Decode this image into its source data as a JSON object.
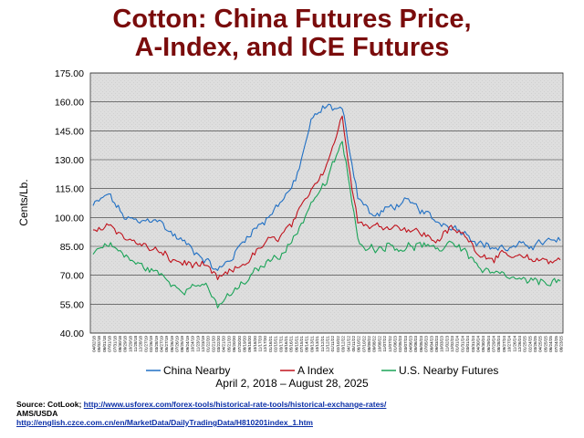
{
  "chart_data": {
    "type": "line",
    "title_lines": [
      "Cotton:  China Futures Price,",
      "A-Index, and ICE Futures"
    ],
    "ylabel": "Cents/Lb.",
    "xlabel": "",
    "subtitle": "April 2, 2018 – August 28, 2025",
    "ylim": [
      40,
      175
    ],
    "yticks": [
      "175.00",
      "160.00",
      "145.00",
      "130.00",
      "115.00",
      "100.00",
      "85.00",
      "70.00",
      "55.00",
      "40.00"
    ],
    "ytick_values": [
      175,
      160,
      145,
      130,
      115,
      100,
      85,
      70,
      55,
      40
    ],
    "xticks": [
      "04/02/18",
      "05/02/18",
      "06/01/18",
      "07/01/18",
      "07/31/18",
      "08/30/18",
      "09/29/18",
      "10/29/18",
      "11/28/18",
      "12/28/18",
      "01/27/19",
      "02/26/19",
      "03/28/19",
      "04/27/19",
      "05/27/19",
      "06/26/19",
      "07/26/19",
      "08/25/19",
      "09/24/19",
      "10/24/19",
      "11/23/19",
      "12/23/19",
      "01/22/20",
      "02/21/20",
      "03/22/20",
      "04/21/20",
      "05/21/20",
      "06/20/20",
      "07/20/20",
      "08/19/20",
      "09/18/20",
      "10/18/20",
      "11/17/20",
      "12/17/20",
      "01/16/21",
      "02/15/21",
      "03/17/21",
      "04/16/21",
      "05/16/21",
      "06/15/21",
      "07/15/21",
      "08/14/21",
      "09/13/21",
      "10/13/21",
      "11/12/21",
      "12/12/21",
      "01/11/22",
      "02/10/22",
      "03/12/22",
      "04/11/22",
      "05/11/22",
      "06/10/22",
      "07/10/22",
      "08/09/22",
      "09/08/22",
      "10/08/22",
      "11/07/22",
      "12/07/22",
      "01/06/23",
      "02/05/23",
      "03/07/23",
      "04/06/23",
      "05/06/23",
      "06/05/23",
      "07/05/23",
      "08/04/23",
      "09/03/23",
      "10/03/23",
      "11/02/23",
      "12/02/23",
      "01/01/24",
      "01/31/24",
      "03/01/24",
      "03/31/24",
      "04/30/24",
      "05/30/24",
      "06/29/24",
      "07/29/24",
      "08/28/24",
      "09/27/24",
      "10/27/24",
      "11/26/24",
      "12/26/24",
      "01/25/25",
      "02/24/25",
      "03/26/25",
      "04/25/25",
      "05/25/25",
      "06/24/25",
      "07/24/25",
      "08/23/25"
    ],
    "grid": true,
    "legend_position": "bottom",
    "x_dates": [
      "2018-04",
      "2018-07",
      "2018-10",
      "2019-01",
      "2019-04",
      "2019-07",
      "2019-10",
      "2020-01",
      "2020-04",
      "2020-07",
      "2020-10",
      "2021-01",
      "2021-04",
      "2021-07",
      "2021-10",
      "2022-01",
      "2022-04",
      "2022-07",
      "2022-10",
      "2023-01",
      "2023-04",
      "2023-07",
      "2023-10",
      "2024-01",
      "2024-04",
      "2024-07",
      "2024-10",
      "2025-01",
      "2025-04",
      "2025-07",
      "2025-08"
    ],
    "series": [
      {
        "name": "China Nearby",
        "color": "#1f6fc4",
        "values": [
          106,
          112,
          100,
          97,
          100,
          92,
          86,
          80,
          72,
          80,
          92,
          98,
          108,
          118,
          150,
          158,
          156,
          112,
          100,
          105,
          108,
          104,
          98,
          96,
          92,
          86,
          84,
          84,
          86,
          87,
          88
        ]
      },
      {
        "name": "A Index",
        "color": "#c0121c",
        "values": [
          92,
          97,
          90,
          86,
          83,
          78,
          76,
          75,
          68,
          72,
          78,
          86,
          90,
          98,
          115,
          128,
          152,
          98,
          95,
          96,
          95,
          92,
          88,
          94,
          90,
          80,
          80,
          79,
          78,
          78,
          78
        ]
      },
      {
        "name": "U.S. Nearby Futures",
        "color": "#1aa357",
        "values": [
          82,
          87,
          80,
          75,
          72,
          66,
          63,
          66,
          54,
          61,
          68,
          76,
          81,
          90,
          108,
          118,
          140,
          88,
          84,
          86,
          84,
          86,
          82,
          88,
          82,
          72,
          70,
          68,
          66,
          67,
          67
        ]
      }
    ]
  },
  "source": {
    "label": "Source:  CotLook; ",
    "link1": "http://www.usforex.com/forex-tools/historical-rate-tools/historical-exchange-rates/",
    "line2": "AMS/USDA",
    "link2": "http://english.czce.com.cn/en/MarketData/DailyTradingData/H810201index_1.htm"
  }
}
